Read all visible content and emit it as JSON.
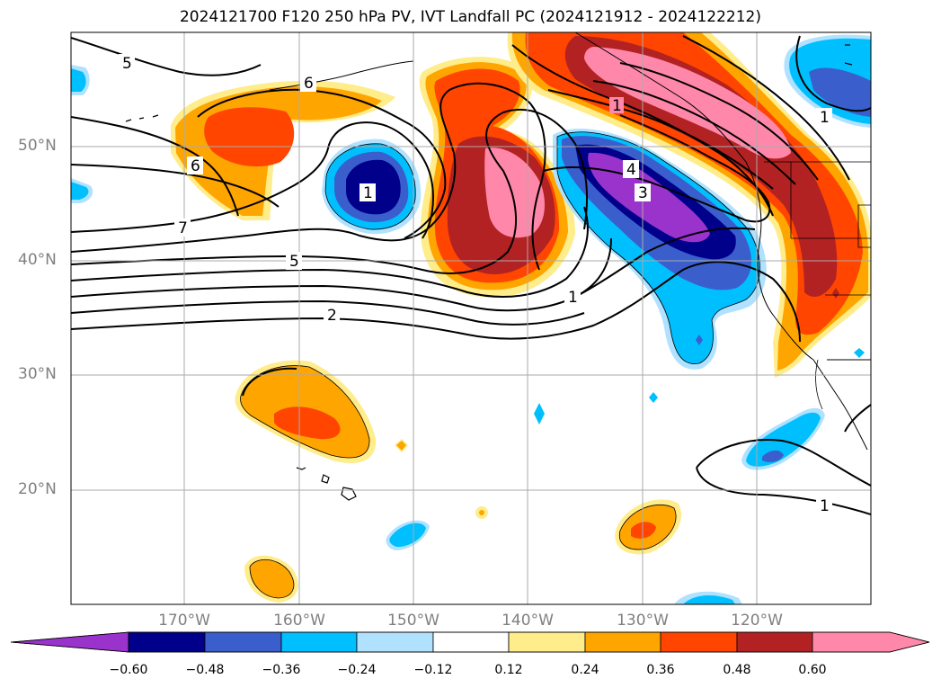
{
  "title": "2024121700 F120 250 hPa PV, IVT Landfall PC (2024121912 - 2024122212)",
  "lat_labels": [
    "50°N",
    "40°N",
    "30°N",
    "20°N"
  ],
  "lon_labels": [
    "170°W",
    "160°W",
    "150°W",
    "140°W",
    "130°W",
    "120°W"
  ],
  "contour_labels": [
    "5",
    "6",
    "6",
    "7",
    "5",
    "2",
    "1",
    "1",
    "4",
    "3",
    "1",
    "1",
    "1"
  ],
  "colorbar": {
    "ticks": [
      "−0.60",
      "−0.48",
      "−0.36",
      "−0.24",
      "−0.12",
      "0.12",
      "0.24",
      "0.36",
      "0.48",
      "0.60"
    ],
    "colors": [
      "#9933cc",
      "#00008b",
      "#3a5fcd",
      "#00bfff",
      "#b0e2ff",
      "#ffffff",
      "#ffec8b",
      "#ffa500",
      "#ff4500",
      "#b22222",
      "#ff88aa",
      "#ff88aa"
    ]
  },
  "fill_colors": {
    "yellow": "#ffec8b",
    "orange": "#ffa500",
    "red_orange": "#ff4500",
    "dark_red": "#b22222",
    "pink": "#ff88aa",
    "light_blue": "#b0e2ff",
    "sky_blue": "#00bfff",
    "mid_blue": "#3a5fcd",
    "navy": "#00008b",
    "purple": "#9933cc"
  }
}
